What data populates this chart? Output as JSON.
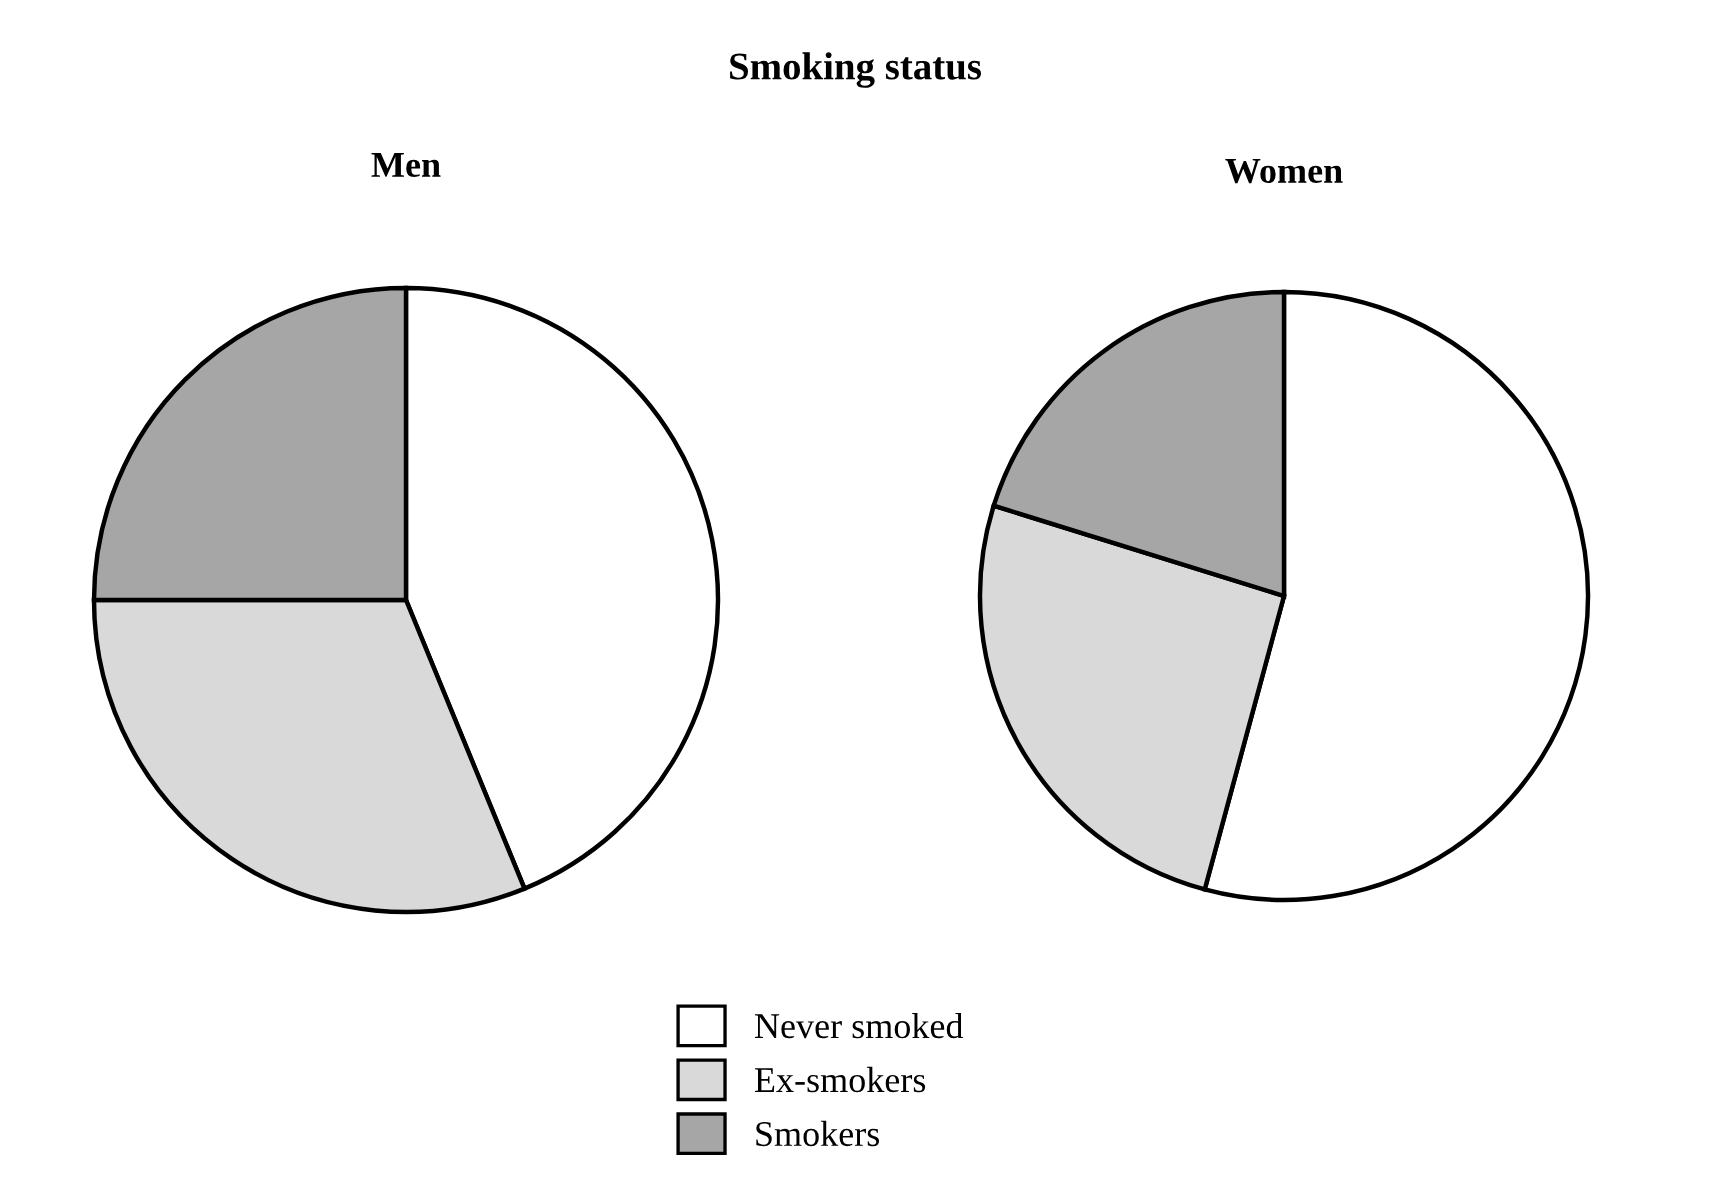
{
  "chart_data": {
    "type": "pie",
    "title": "Smoking status",
    "categories": [
      "Never smoked",
      "Ex-smokers",
      "Smokers"
    ],
    "colors": [
      "#ffffff",
      "#d9d9d9",
      "#a6a6a6"
    ],
    "legend": "bottom",
    "series": [
      {
        "name": "Men",
        "values": [
          43.8,
          31.2,
          25.0
        ]
      },
      {
        "name": "Women",
        "values": [
          54.2,
          25.6,
          20.2
        ]
      }
    ]
  }
}
